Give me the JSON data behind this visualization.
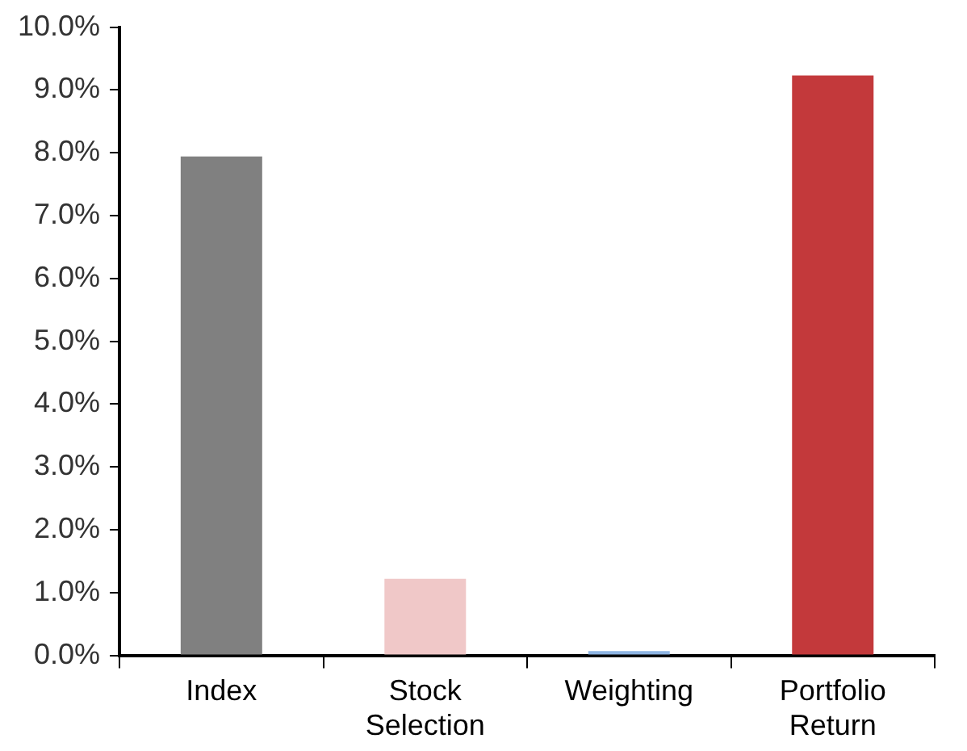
{
  "chart_data": {
    "type": "bar",
    "categories": [
      "Index",
      "Stock Selection",
      "Weighting",
      "Portfolio Return"
    ],
    "values": [
      7.94,
      1.22,
      0.07,
      9.23
    ],
    "colors": [
      "#808080",
      "#f0c8c8",
      "#8db4e2",
      "#c3393b"
    ],
    "ylim": [
      0,
      10
    ],
    "yticks": [
      {
        "value": 0,
        "label": "0.0%"
      },
      {
        "value": 1,
        "label": "1.0%"
      },
      {
        "value": 2,
        "label": "2.0%"
      },
      {
        "value": 3,
        "label": "3.0%"
      },
      {
        "value": 4,
        "label": "4.0%"
      },
      {
        "value": 5,
        "label": "5.0%"
      },
      {
        "value": 6,
        "label": "6.0%"
      },
      {
        "value": 7,
        "label": "7.0%"
      },
      {
        "value": 8,
        "label": "8.0%"
      },
      {
        "value": 9,
        "label": "9.0%"
      },
      {
        "value": 10,
        "label": "10.0%"
      }
    ],
    "grid": false,
    "legend": false
  }
}
